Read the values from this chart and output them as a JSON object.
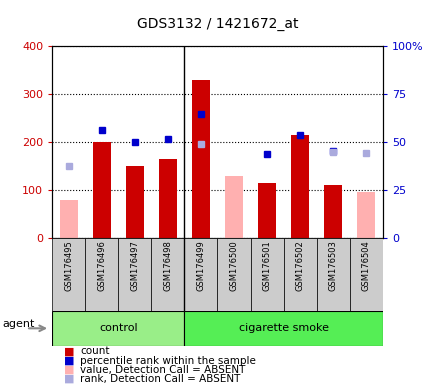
{
  "title": "GDS3132 / 1421672_at",
  "samples": [
    "GSM176495",
    "GSM176496",
    "GSM176497",
    "GSM176498",
    "GSM176499",
    "GSM176500",
    "GSM176501",
    "GSM176502",
    "GSM176503",
    "GSM176504"
  ],
  "count_values": [
    null,
    200,
    150,
    165,
    330,
    null,
    115,
    215,
    110,
    null
  ],
  "count_absent_values": [
    80,
    null,
    null,
    null,
    null,
    130,
    null,
    null,
    null,
    95
  ],
  "percentile_rank_left": [
    null,
    225,
    200,
    207,
    258,
    null,
    175,
    215,
    182,
    null
  ],
  "rank_absent_left": [
    150,
    null,
    null,
    null,
    197,
    null,
    null,
    null,
    180,
    178
  ],
  "ylim": [
    0,
    400
  ],
  "y2lim": [
    0,
    100
  ],
  "yticks": [
    0,
    100,
    200,
    300,
    400
  ],
  "y2ticks": [
    0,
    25,
    50,
    75,
    100
  ],
  "y2tick_labels": [
    "0",
    "25",
    "50",
    "75",
    "100%"
  ],
  "bar_color_count": "#cc0000",
  "bar_color_absent": "#ffb0b0",
  "dot_color_rank": "#0000cc",
  "dot_color_rank_absent": "#aaaadd",
  "control_bg": "#99ee88",
  "smoke_bg": "#55ee55",
  "xlabel_area_bg": "#cccccc",
  "legend_items": [
    {
      "color": "#cc0000",
      "label": "count"
    },
    {
      "color": "#0000cc",
      "label": "percentile rank within the sample"
    },
    {
      "color": "#ffb0b0",
      "label": "value, Detection Call = ABSENT"
    },
    {
      "color": "#aaaadd",
      "label": "rank, Detection Call = ABSENT"
    }
  ],
  "bar_width": 0.55
}
